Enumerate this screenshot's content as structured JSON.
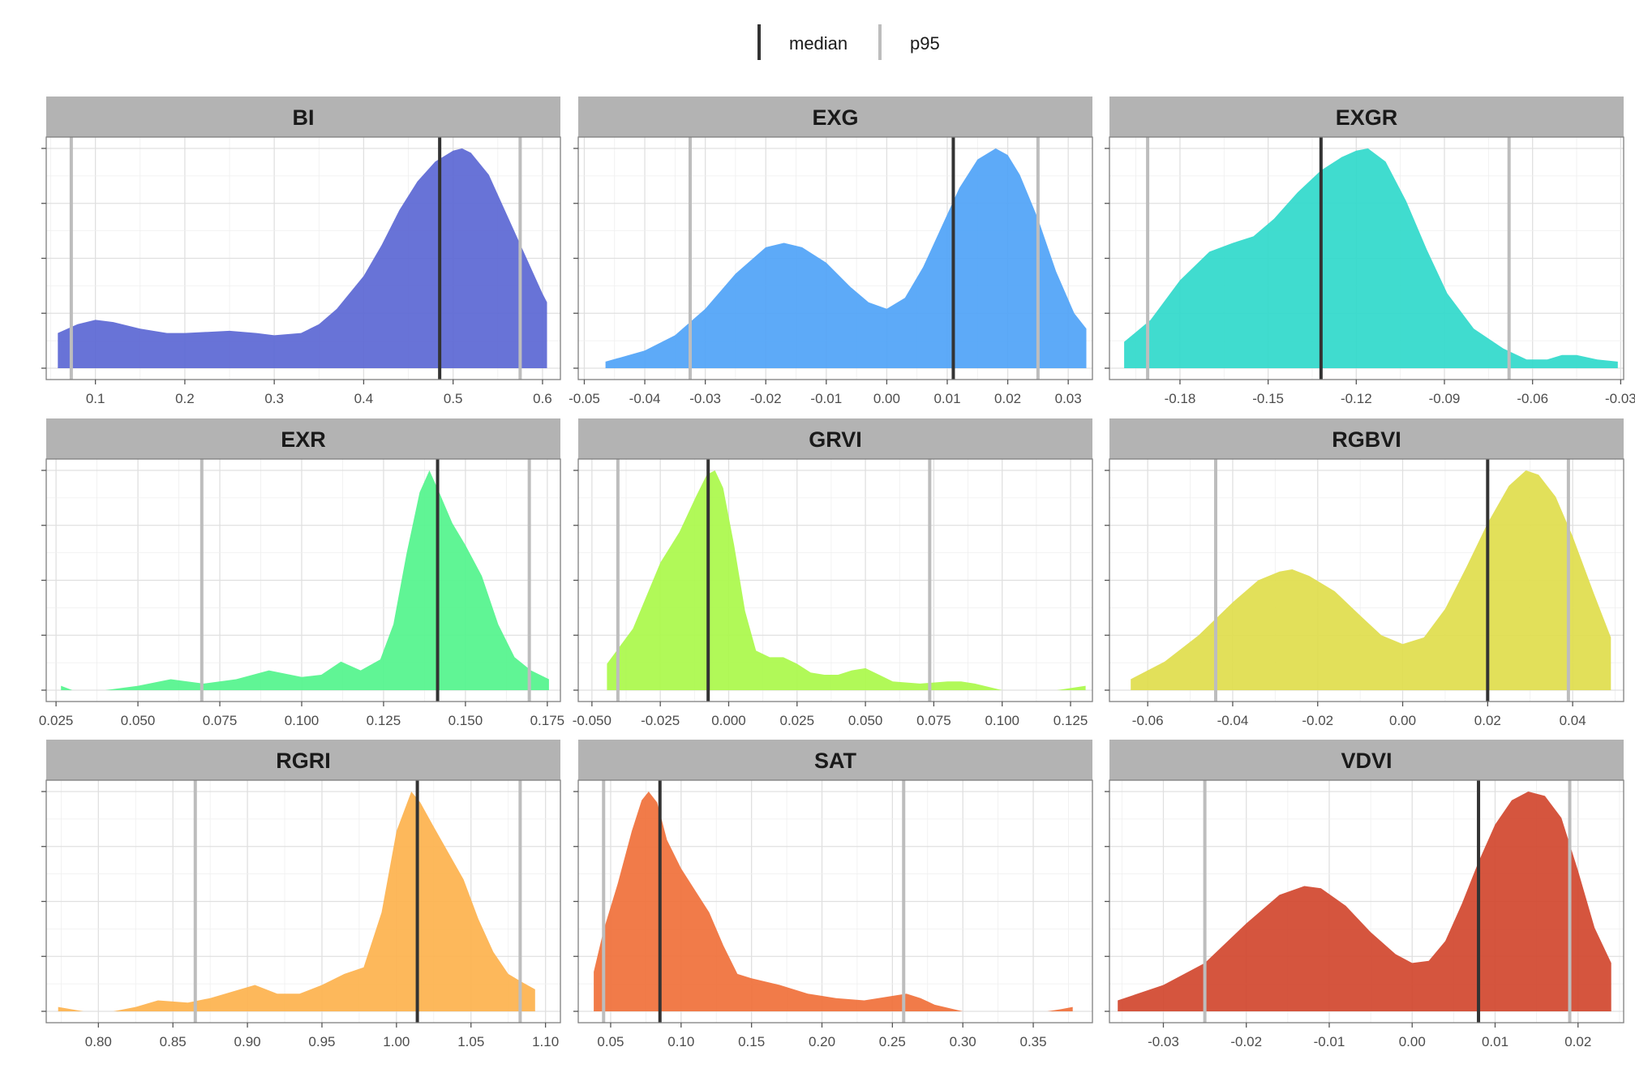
{
  "legend": {
    "items": [
      {
        "label": "median",
        "color": "#333333"
      },
      {
        "label": "p95",
        "color": "#bdbdbd"
      }
    ],
    "position": "top"
  },
  "chart_data": [
    {
      "type": "area",
      "title": "BI",
      "color": "#5b67d4",
      "xlim": [
        0.045,
        0.62
      ],
      "ticks": [
        0.1,
        0.2,
        0.3,
        0.4,
        0.5,
        0.6
      ],
      "tick_labels": [
        "0.1",
        "0.2",
        "0.3",
        "0.4",
        "0.5",
        "0.6"
      ],
      "median": 0.485,
      "p95": [
        0.073,
        0.575
      ],
      "x": [
        0.058,
        0.08,
        0.1,
        0.12,
        0.15,
        0.18,
        0.2,
        0.25,
        0.28,
        0.3,
        0.33,
        0.35,
        0.37,
        0.4,
        0.42,
        0.44,
        0.46,
        0.48,
        0.5,
        0.51,
        0.52,
        0.54,
        0.56,
        0.58,
        0.6,
        0.605
      ],
      "y": [
        0.16,
        0.2,
        0.22,
        0.21,
        0.18,
        0.16,
        0.16,
        0.17,
        0.16,
        0.15,
        0.16,
        0.2,
        0.27,
        0.42,
        0.56,
        0.72,
        0.85,
        0.94,
        0.99,
        1.0,
        0.98,
        0.88,
        0.7,
        0.52,
        0.34,
        0.3
      ]
    },
    {
      "type": "area",
      "title": "EXG",
      "color": "#4fa3f7",
      "xlim": [
        -0.051,
        0.034
      ],
      "ticks": [
        -0.05,
        -0.04,
        -0.03,
        -0.02,
        -0.01,
        0.0,
        0.01,
        0.02,
        0.03
      ],
      "tick_labels": [
        "-0.05",
        "-0.04",
        "-0.03",
        "-0.02",
        "-0.01",
        "0.00",
        "0.01",
        "0.02",
        "0.03"
      ],
      "median": 0.011,
      "p95": [
        -0.0325,
        0.025
      ],
      "x": [
        -0.0465,
        -0.04,
        -0.035,
        -0.03,
        -0.025,
        -0.02,
        -0.017,
        -0.014,
        -0.01,
        -0.006,
        -0.003,
        0.0,
        0.003,
        0.006,
        0.009,
        0.012,
        0.015,
        0.018,
        0.02,
        0.022,
        0.025,
        0.028,
        0.031,
        0.033
      ],
      "y": [
        0.03,
        0.08,
        0.15,
        0.27,
        0.43,
        0.55,
        0.57,
        0.55,
        0.48,
        0.37,
        0.3,
        0.27,
        0.32,
        0.46,
        0.64,
        0.82,
        0.95,
        1.0,
        0.97,
        0.88,
        0.68,
        0.44,
        0.25,
        0.18
      ]
    },
    {
      "type": "area",
      "title": "EXGR",
      "color": "#30d9cb",
      "xlim": [
        -0.204,
        -0.029
      ],
      "ticks": [
        -0.18,
        -0.15,
        -0.12,
        -0.09,
        -0.06,
        -0.03
      ],
      "tick_labels": [
        "-0.18",
        "-0.15",
        "-0.12",
        "-0.09",
        "-0.06",
        "-0.03"
      ],
      "median": -0.132,
      "p95": [
        -0.191,
        -0.068
      ],
      "x": [
        -0.199,
        -0.19,
        -0.18,
        -0.17,
        -0.162,
        -0.155,
        -0.148,
        -0.14,
        -0.132,
        -0.125,
        -0.12,
        -0.116,
        -0.11,
        -0.103,
        -0.096,
        -0.089,
        -0.08,
        -0.07,
        -0.062,
        -0.055,
        -0.05,
        -0.045,
        -0.038,
        -0.031
      ],
      "y": [
        0.12,
        0.22,
        0.4,
        0.53,
        0.57,
        0.6,
        0.68,
        0.8,
        0.9,
        0.96,
        0.99,
        1.0,
        0.94,
        0.76,
        0.54,
        0.34,
        0.18,
        0.09,
        0.04,
        0.04,
        0.06,
        0.06,
        0.04,
        0.03
      ]
    },
    {
      "type": "area",
      "title": "EXR",
      "color": "#52f48c",
      "xlim": [
        0.022,
        0.179
      ],
      "ticks": [
        0.025,
        0.05,
        0.075,
        0.1,
        0.125,
        0.15,
        0.175
      ],
      "tick_labels": [
        "0.025",
        "0.050",
        "0.075",
        "0.100",
        "0.125",
        "0.150",
        "0.175"
      ],
      "median": 0.1415,
      "p95": [
        0.0695,
        0.1695
      ],
      "x": [
        0.0265,
        0.03,
        0.04,
        0.05,
        0.06,
        0.07,
        0.08,
        0.09,
        0.1,
        0.106,
        0.112,
        0.118,
        0.124,
        0.128,
        0.132,
        0.136,
        0.139,
        0.142,
        0.146,
        0.15,
        0.155,
        0.16,
        0.165,
        0.17,
        0.1755
      ],
      "y": [
        0.02,
        0.0,
        0.0,
        0.02,
        0.05,
        0.03,
        0.05,
        0.09,
        0.06,
        0.07,
        0.13,
        0.09,
        0.14,
        0.3,
        0.62,
        0.9,
        1.0,
        0.9,
        0.76,
        0.66,
        0.52,
        0.3,
        0.15,
        0.09,
        0.05
      ]
    },
    {
      "type": "area",
      "title": "GRVI",
      "color": "#aaf84a",
      "xlim": [
        -0.055,
        0.133
      ],
      "ticks": [
        -0.05,
        -0.025,
        0.0,
        0.025,
        0.05,
        0.075,
        0.1,
        0.125
      ],
      "tick_labels": [
        "-0.050",
        "-0.025",
        "0.000",
        "0.025",
        "0.050",
        "0.075",
        "0.100",
        "0.125"
      ],
      "median": -0.0075,
      "p95": [
        -0.0405,
        0.0735
      ],
      "x": [
        -0.0445,
        -0.035,
        -0.025,
        -0.018,
        -0.012,
        -0.008,
        -0.005,
        -0.002,
        0.002,
        0.006,
        0.01,
        0.015,
        0.02,
        0.025,
        0.03,
        0.035,
        0.04,
        0.045,
        0.05,
        0.055,
        0.06,
        0.07,
        0.08,
        0.085,
        0.09,
        0.1,
        0.11,
        0.12,
        0.1305
      ],
      "y": [
        0.12,
        0.28,
        0.58,
        0.72,
        0.88,
        0.98,
        1.0,
        0.92,
        0.66,
        0.36,
        0.18,
        0.15,
        0.15,
        0.12,
        0.08,
        0.07,
        0.07,
        0.09,
        0.1,
        0.07,
        0.04,
        0.03,
        0.04,
        0.04,
        0.03,
        0.0,
        0.0,
        0.0,
        0.02
      ]
    },
    {
      "type": "area",
      "title": "RGBVI",
      "color": "#e0dd4c",
      "xlim": [
        -0.069,
        0.052
      ],
      "ticks": [
        -0.06,
        -0.04,
        -0.02,
        0.0,
        0.02,
        0.04
      ],
      "tick_labels": [
        "-0.06",
        "-0.04",
        "-0.02",
        "0.00",
        "0.02",
        "0.04"
      ],
      "median": 0.02,
      "p95": [
        -0.044,
        0.039
      ],
      "x": [
        -0.064,
        -0.056,
        -0.048,
        -0.04,
        -0.034,
        -0.029,
        -0.026,
        -0.022,
        -0.016,
        -0.01,
        -0.005,
        0.0,
        0.005,
        0.01,
        0.015,
        0.02,
        0.025,
        0.029,
        0.032,
        0.036,
        0.04,
        0.045,
        0.049
      ],
      "y": [
        0.05,
        0.13,
        0.25,
        0.4,
        0.5,
        0.54,
        0.55,
        0.52,
        0.45,
        0.34,
        0.25,
        0.21,
        0.24,
        0.37,
        0.56,
        0.76,
        0.93,
        1.0,
        0.98,
        0.88,
        0.7,
        0.44,
        0.24
      ]
    },
    {
      "type": "area",
      "title": "RGRI",
      "color": "#fdb24d",
      "xlim": [
        0.765,
        1.11
      ],
      "ticks": [
        0.8,
        0.85,
        0.9,
        0.95,
        1.0,
        1.05,
        1.1
      ],
      "tick_labels": [
        "0.80",
        "0.85",
        "0.90",
        "0.95",
        "1.00",
        "1.05",
        "1.10"
      ],
      "median": 1.014,
      "p95": [
        0.865,
        1.083
      ],
      "x": [
        0.773,
        0.79,
        0.81,
        0.825,
        0.84,
        0.86,
        0.875,
        0.89,
        0.905,
        0.92,
        0.935,
        0.95,
        0.965,
        0.978,
        0.99,
        1.0,
        1.01,
        1.016,
        1.025,
        1.035,
        1.045,
        1.055,
        1.065,
        1.075,
        1.085,
        1.093
      ],
      "y": [
        0.02,
        0.0,
        0.0,
        0.02,
        0.05,
        0.04,
        0.06,
        0.09,
        0.12,
        0.08,
        0.08,
        0.12,
        0.17,
        0.2,
        0.45,
        0.82,
        1.0,
        0.95,
        0.84,
        0.72,
        0.6,
        0.42,
        0.27,
        0.17,
        0.13,
        0.1
      ]
    },
    {
      "type": "area",
      "title": "SAT",
      "color": "#f0703a",
      "xlim": [
        0.027,
        0.392
      ],
      "ticks": [
        0.05,
        0.1,
        0.15,
        0.2,
        0.25,
        0.3,
        0.35
      ],
      "tick_labels": [
        "0.05",
        "0.10",
        "0.15",
        "0.20",
        "0.25",
        "0.30",
        "0.35"
      ],
      "median": 0.085,
      "p95": [
        0.045,
        0.258
      ],
      "x": [
        0.038,
        0.045,
        0.055,
        0.065,
        0.072,
        0.077,
        0.083,
        0.09,
        0.1,
        0.11,
        0.12,
        0.13,
        0.14,
        0.15,
        0.17,
        0.19,
        0.21,
        0.23,
        0.25,
        0.26,
        0.27,
        0.28,
        0.3,
        0.32,
        0.34,
        0.36,
        0.37,
        0.378
      ],
      "y": [
        0.18,
        0.37,
        0.58,
        0.82,
        0.96,
        1.0,
        0.95,
        0.78,
        0.65,
        0.55,
        0.45,
        0.3,
        0.17,
        0.15,
        0.12,
        0.08,
        0.06,
        0.05,
        0.07,
        0.08,
        0.06,
        0.03,
        0.0,
        0.0,
        0.0,
        0.0,
        0.01,
        0.02
      ]
    },
    {
      "type": "area",
      "title": "VDVI",
      "color": "#d1472e",
      "xlim": [
        -0.0365,
        0.0255
      ],
      "ticks": [
        -0.03,
        -0.02,
        -0.01,
        0.0,
        0.01,
        0.02
      ],
      "tick_labels": [
        "-0.03",
        "-0.02",
        "-0.01",
        "0.00",
        "0.01",
        "0.02"
      ],
      "median": 0.008,
      "p95": [
        -0.025,
        0.019
      ],
      "x": [
        -0.0355,
        -0.03,
        -0.025,
        -0.02,
        -0.016,
        -0.013,
        -0.011,
        -0.008,
        -0.005,
        -0.002,
        0.0,
        0.002,
        0.004,
        0.006,
        0.008,
        0.01,
        0.012,
        0.014,
        0.016,
        0.018,
        0.02,
        0.022,
        0.024
      ],
      "y": [
        0.05,
        0.12,
        0.22,
        0.4,
        0.53,
        0.57,
        0.56,
        0.48,
        0.36,
        0.26,
        0.22,
        0.23,
        0.32,
        0.49,
        0.68,
        0.85,
        0.96,
        1.0,
        0.98,
        0.88,
        0.64,
        0.38,
        0.22
      ]
    }
  ]
}
